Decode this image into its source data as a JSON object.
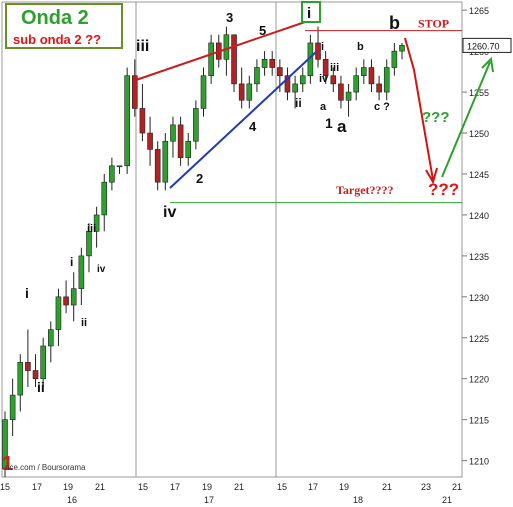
{
  "title": "Onda 2",
  "subtitle": "sub onda 2 ??",
  "source": "nce.com / Boursorama",
  "chart_data": {
    "type": "candlestick",
    "ylim": [
      1208,
      1266
    ],
    "yticks": [
      1210,
      1215,
      1220,
      1225,
      1230,
      1235,
      1240,
      1245,
      1250,
      1255,
      1260,
      1265
    ],
    "last_price": "1260.70",
    "x_day_ticks": [
      "15",
      "17",
      "19",
      "21",
      "15",
      "17",
      "19",
      "21",
      "15",
      "17",
      "19",
      "21",
      "23",
      "21"
    ],
    "x_month_labels": [
      "16",
      "17",
      "18",
      "21"
    ],
    "stop_label": "STOP",
    "stop_level": 1262.5,
    "target_label": "Target????",
    "target_level": 1241.5,
    "candles": [
      [
        1209,
        1216,
        1208,
        1215
      ],
      [
        1215,
        1220,
        1213,
        1218
      ],
      [
        1218,
        1223,
        1216,
        1222
      ],
      [
        1222,
        1226,
        1219,
        1221
      ],
      [
        1221,
        1223,
        1219,
        1220
      ],
      [
        1220,
        1225,
        1219,
        1224
      ],
      [
        1224,
        1227,
        1222,
        1226
      ],
      [
        1226,
        1231,
        1224,
        1230
      ],
      [
        1230,
        1232,
        1228,
        1229
      ],
      [
        1229,
        1233,
        1227,
        1231
      ],
      [
        1231,
        1236,
        1229,
        1235
      ],
      [
        1235,
        1239,
        1233,
        1238
      ],
      [
        1238,
        1241,
        1236,
        1240
      ],
      [
        1240,
        1245,
        1238,
        1244
      ],
      [
        1244,
        1247,
        1243,
        1246
      ],
      [
        1246,
        1246,
        1245,
        1246
      ],
      [
        1246,
        1258,
        1245,
        1257
      ],
      [
        1257,
        1259,
        1252,
        1253
      ],
      [
        1253,
        1256,
        1249,
        1250
      ],
      [
        1250,
        1252,
        1246,
        1248
      ],
      [
        1248,
        1249,
        1243,
        1244
      ],
      [
        1244,
        1250,
        1243,
        1249
      ],
      [
        1249,
        1252,
        1247,
        1251
      ],
      [
        1251,
        1252,
        1246,
        1247
      ],
      [
        1247,
        1250,
        1246,
        1249
      ],
      [
        1249,
        1254,
        1248,
        1253
      ],
      [
        1253,
        1258,
        1252,
        1257
      ],
      [
        1257,
        1262,
        1256,
        1261
      ],
      [
        1261,
        1262,
        1258,
        1259
      ],
      [
        1259,
        1263,
        1257,
        1262
      ],
      [
        1262,
        1262,
        1255,
        1256
      ],
      [
        1256,
        1258,
        1253,
        1254
      ],
      [
        1254,
        1257,
        1253,
        1256
      ],
      [
        1256,
        1259,
        1255,
        1258
      ],
      [
        1258,
        1260,
        1257,
        1259
      ],
      [
        1259,
        1260,
        1257,
        1258
      ],
      [
        1258,
        1259,
        1255,
        1257
      ],
      [
        1257,
        1258,
        1254,
        1255
      ],
      [
        1255,
        1257,
        1253,
        1256
      ],
      [
        1256,
        1258,
        1255,
        1257
      ],
      [
        1257,
        1262,
        1256,
        1261
      ],
      [
        1261,
        1263,
        1258,
        1259
      ],
      [
        1259,
        1260,
        1256,
        1257
      ],
      [
        1257,
        1258,
        1255,
        1256
      ],
      [
        1256,
        1257,
        1253,
        1254
      ],
      [
        1254,
        1256,
        1252,
        1255
      ],
      [
        1255,
        1258,
        1254,
        1257
      ],
      [
        1257,
        1259,
        1256,
        1258
      ],
      [
        1258,
        1259,
        1255,
        1256
      ],
      [
        1256,
        1257,
        1254,
        1255
      ],
      [
        1255,
        1259,
        1254,
        1258
      ],
      [
        1258,
        1261,
        1257,
        1260
      ],
      [
        1260,
        1261,
        1259,
        1260.7
      ]
    ],
    "wave_labels": [
      {
        "text": "1",
        "color": "#e01414"
      },
      {
        "text": "i",
        "color": "#111111"
      },
      {
        "text": "ii",
        "color": "#111111"
      },
      {
        "text": "i",
        "color": "#111111"
      },
      {
        "text": "ii",
        "color": "#111111"
      },
      {
        "text": "iii",
        "color": "#111111"
      },
      {
        "text": "iv",
        "color": "#111111"
      },
      {
        "text": "iii",
        "color": "#111111"
      },
      {
        "text": "iv",
        "color": "#111111"
      },
      {
        "text": "1",
        "color": "#111111"
      },
      {
        "text": "2",
        "color": "#111111"
      },
      {
        "text": "3",
        "color": "#111111"
      },
      {
        "text": "4",
        "color": "#111111"
      },
      {
        "text": "5",
        "color": "#111111"
      },
      {
        "text": "ii",
        "color": "#111111"
      },
      {
        "text": "i",
        "color": "#111111"
      },
      {
        "text": "iv",
        "color": "#111111"
      },
      {
        "text": "iii",
        "color": "#111111"
      },
      {
        "text": "a",
        "color": "#111111"
      },
      {
        "text": "a",
        "color": "#111111"
      },
      {
        "text": "b",
        "color": "#111111"
      },
      {
        "text": "b",
        "color": "#111111"
      },
      {
        "text": "c ?",
        "color": "#111111"
      },
      {
        "text": "???",
        "color": "#e01414"
      },
      {
        "text": "???",
        "color": "#2ea02e"
      }
    ],
    "boxed_label": "i",
    "colors": {
      "up_candle": "#2ea02e",
      "down_candle": "#b22222",
      "stop_line": "#c81e1e",
      "target_line": "#2ea02e",
      "upper_channel": "#c81e1e",
      "lower_channel": "#1f3bb5",
      "forecast_down": "#d01414",
      "forecast_up": "#2ea02e"
    }
  }
}
